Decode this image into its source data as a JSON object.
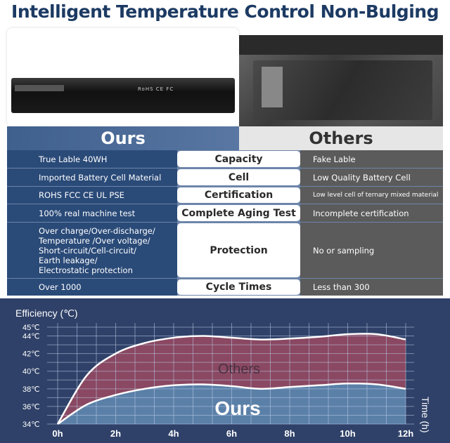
{
  "title": "Intelligent Temperature Control Non-Bulging",
  "battery_label": "RoHS CE FC",
  "comparison": {
    "ours_header": "Ours",
    "others_header": "Others",
    "rows": [
      {
        "feature": "Capacity",
        "ours": "True Lable 40WH",
        "others": "Fake Lable"
      },
      {
        "feature": "Cell",
        "ours": "Imported Battery Cell Material",
        "others": "Low Quality Battery Cell"
      },
      {
        "feature": "Certification",
        "ours": "ROHS FCC CE UL PSE",
        "others": "Low level cell of ternary mixed material"
      },
      {
        "feature": "Complete Aging Test",
        "ours": "100% real machine test",
        "others": "Incomplete certification"
      },
      {
        "feature": "Protection",
        "ours": "Over charge/Over-discharge/\nTemperature /Over voltage/\nShort-circuit/Cell-circuit/\nEarth leakage/\nElectrostatic protection",
        "others": "No or sampling"
      },
      {
        "feature": "Cycle Times",
        "ours": "Over 1000",
        "others": "Less than 300"
      }
    ]
  },
  "chart_data": {
    "type": "area",
    "ylabel": "Efficiency (℃)",
    "xlabel": "Time (h)",
    "x": [
      0,
      1,
      2,
      3,
      4,
      5,
      6,
      7,
      8,
      9,
      10,
      11,
      12
    ],
    "x_ticks": [
      "0h",
      "2h",
      "4h",
      "6h",
      "8h",
      "10h",
      "12h"
    ],
    "y_ticks": [
      "34℃",
      "36℃",
      "38℃",
      "40℃",
      "42℃",
      "44℃",
      "45℃"
    ],
    "ylim": [
      34,
      45
    ],
    "xlim": [
      0,
      12
    ],
    "grid": true,
    "series": [
      {
        "name": "Others",
        "color": "#8a4862",
        "values": [
          34,
          39.5,
          42,
          43.2,
          43.8,
          44,
          43.8,
          43.6,
          43.7,
          43.9,
          44.2,
          44.2,
          43.6
        ]
      },
      {
        "name": "Ours",
        "color": "#5b80a8",
        "values": [
          34,
          36.2,
          37.3,
          38,
          38.4,
          38.5,
          38.3,
          38,
          38.2,
          38.4,
          38.6,
          38.5,
          38
        ]
      }
    ]
  }
}
